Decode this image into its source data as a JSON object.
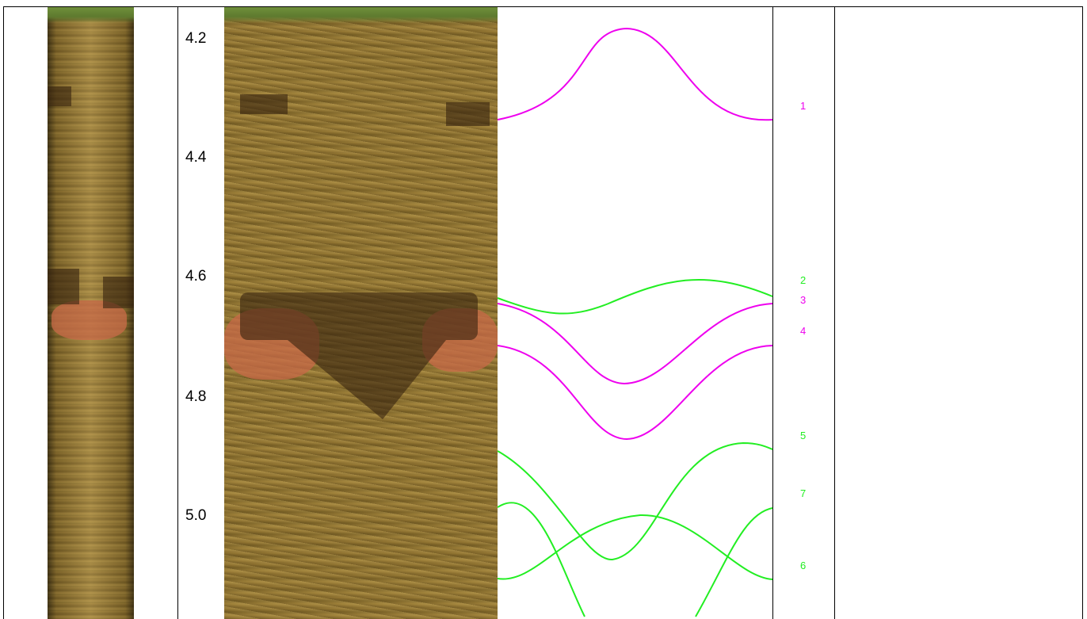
{
  "depth_scale": {
    "ticks": [
      "4.2",
      "4.4",
      "4.6",
      "4.8",
      "5.0"
    ]
  },
  "panels": {
    "left_core": {
      "icon": "core-image-thumbnail"
    },
    "right_core": {
      "icon": "core-image-detail"
    }
  },
  "correlation_lines": [
    {
      "id": "1",
      "color": "#ee00ee"
    },
    {
      "id": "2",
      "color": "#22ee22"
    },
    {
      "id": "3",
      "color": "#ee00ee"
    },
    {
      "id": "4",
      "color": "#ee00ee"
    },
    {
      "id": "5",
      "color": "#22ee22"
    },
    {
      "id": "7",
      "color": "#22ee22"
    },
    {
      "id": "6",
      "color": "#22ee22"
    }
  ]
}
